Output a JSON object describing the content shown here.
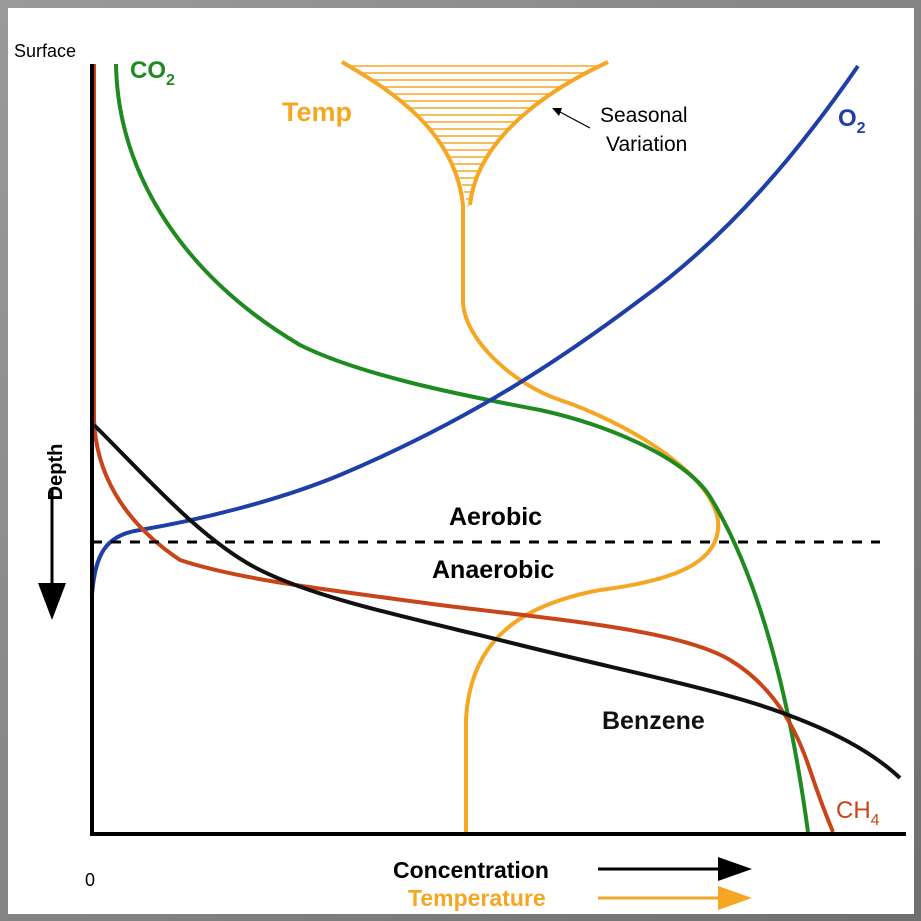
{
  "labels": {
    "surface": "Surface",
    "depth": "Depth",
    "origin": "0",
    "concentration": "Concentration",
    "temperature": "Temperature",
    "aerobic": "Aerobic",
    "anaerobic": "Anaerobic",
    "seasonal_line1": "Seasonal",
    "seasonal_line2": "Variation"
  },
  "curves": {
    "co2": {
      "label": "CO",
      "subscript": "2",
      "color": "#1f8a1f"
    },
    "o2": {
      "label": "O",
      "subscript": "2",
      "color": "#1e3fa8"
    },
    "temp": {
      "label": "Temp",
      "color": "#f5a623"
    },
    "benzene": {
      "label": "Benzene",
      "color": "#111111"
    },
    "ch4": {
      "label": "CH",
      "subscript": "4",
      "color": "#c8451a"
    }
  }
}
